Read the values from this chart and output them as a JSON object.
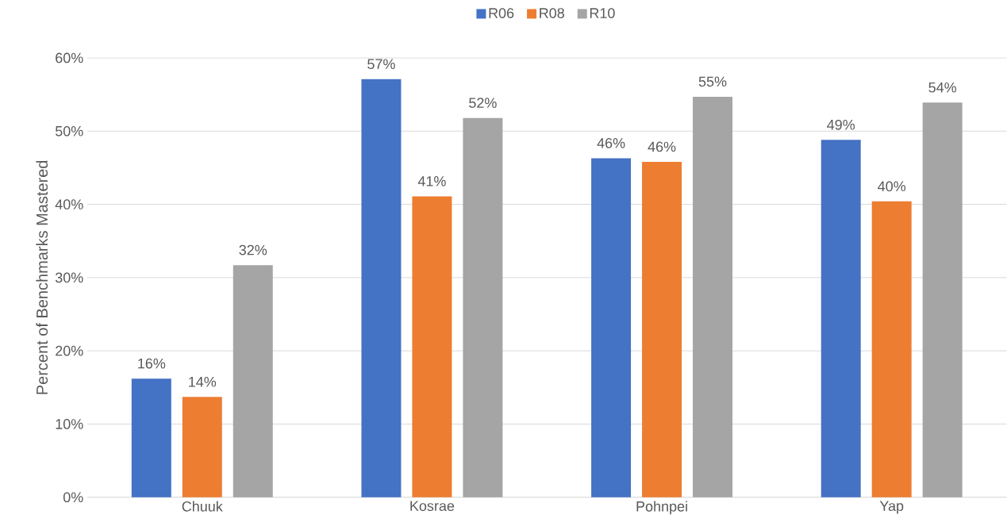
{
  "chart_data": {
    "type": "bar",
    "ylabel": "Percent of Benchmarks Mastered",
    "categories": [
      "Chuuk",
      "Kosrae",
      "Pohnpei",
      "Yap"
    ],
    "series": [
      {
        "name": "R06",
        "color": "#4472c4",
        "values": [
          16.2,
          57.1,
          46.3,
          48.8
        ],
        "value_labels": [
          "16%",
          "57%",
          "46%",
          "49%"
        ]
      },
      {
        "name": "R08",
        "color": "#ed7d31",
        "values": [
          13.7,
          41.1,
          45.8,
          40.4
        ],
        "value_labels": [
          "14%",
          "41%",
          "46%",
          "40%"
        ]
      },
      {
        "name": "R10",
        "color": "#a5a5a5",
        "values": [
          31.7,
          51.8,
          54.7,
          53.9
        ],
        "value_labels": [
          "32%",
          "52%",
          "55%",
          "54%"
        ]
      }
    ],
    "ylim": [
      0,
      60
    ],
    "yticks": [
      {
        "value": 0,
        "label": "0%"
      },
      {
        "value": 10,
        "label": "10%"
      },
      {
        "value": 20,
        "label": "20%"
      },
      {
        "value": 30,
        "label": "30%"
      },
      {
        "value": 40,
        "label": "40%"
      },
      {
        "value": 50,
        "label": "50%"
      },
      {
        "value": 60,
        "label": "60%"
      }
    ],
    "grid": "y",
    "legend": "top"
  }
}
